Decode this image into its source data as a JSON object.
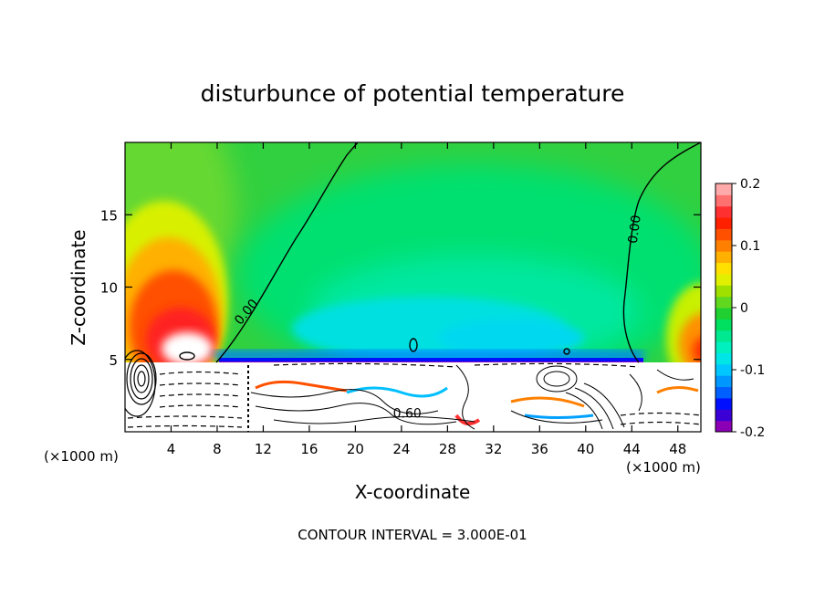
{
  "chart_data": {
    "type": "heatmap",
    "title": "disturbunce of potential temperature",
    "xlabel": "X-coordinate",
    "ylabel": "Z-coordinate",
    "x_unit": "(×1000 m)",
    "x_unit_right": "(×1000 m)",
    "xlim": [
      0,
      50
    ],
    "ylim": [
      0,
      20
    ],
    "x_ticks": [
      4,
      8,
      12,
      16,
      20,
      24,
      28,
      32,
      36,
      40,
      44,
      48
    ],
    "y_ticks": [
      5,
      10,
      15
    ],
    "colorbar": {
      "range": [
        -0.2,
        0.2
      ],
      "tick_labels": [
        "0.2",
        "0.1",
        "0",
        "-0.1",
        "-0.2"
      ],
      "tick_values": [
        0.2,
        0.1,
        0,
        -0.1,
        -0.2
      ],
      "colors": [
        "#8b00b5",
        "#3a00d6",
        "#0010ff",
        "#0060ff",
        "#0098ff",
        "#00c8ff",
        "#00e6e6",
        "#00f0c0",
        "#00e890",
        "#00e060",
        "#20d030",
        "#60d820",
        "#a0e000",
        "#e0f000",
        "#ffe000",
        "#ffb000",
        "#ff8000",
        "#ff5000",
        "#ff2000",
        "#ff3030",
        "#ff7070",
        "#ffaaaa"
      ]
    },
    "contour_labels": [
      {
        "text": "0.00",
        "x": 10.5,
        "z": 8.3,
        "angle": -50
      },
      {
        "text": "0.00",
        "x": 44.2,
        "z": 14.0,
        "angle": -82
      },
      {
        "text": "0.60",
        "x": 24.5,
        "z": 1.3,
        "angle": 0
      }
    ],
    "footer": "CONTOUR INTERVAL = 3.000E-01"
  }
}
